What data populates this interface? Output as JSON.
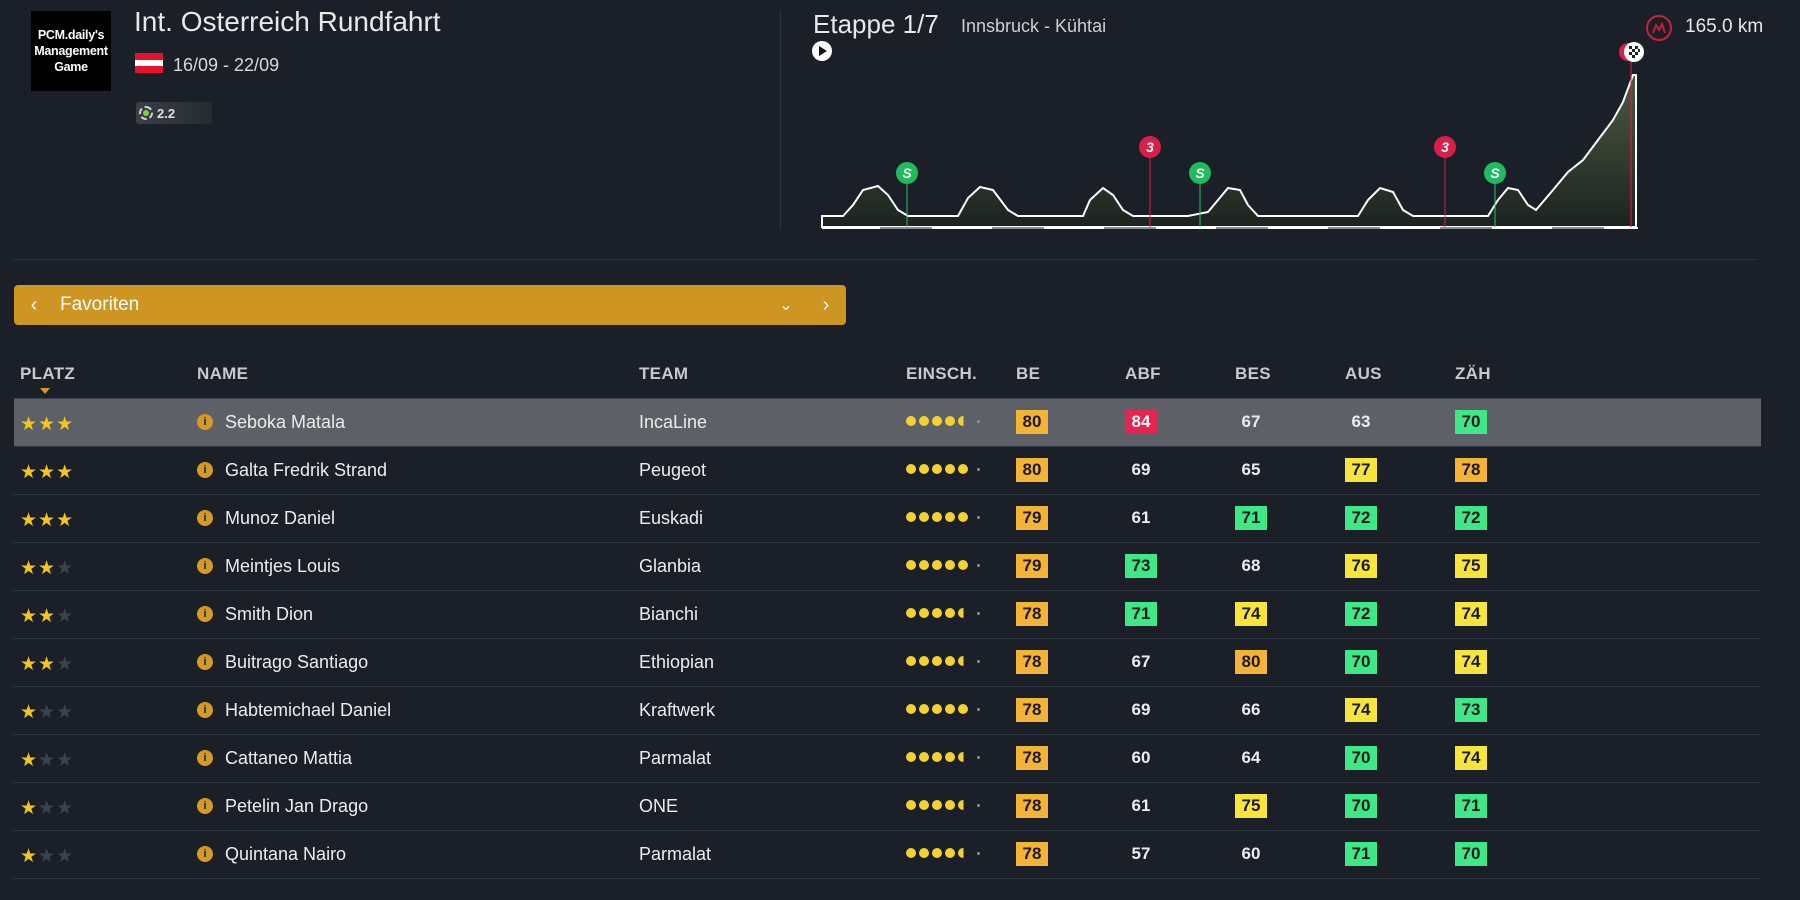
{
  "logo_text": "PCM.daily's Management Game",
  "race": {
    "title": "Int. Osterreich Rundfahrt",
    "dates": "16/09 - 22/09",
    "class": "2.2",
    "flag_colors": [
      "#e8112d",
      "#ffffff",
      "#e8112d"
    ]
  },
  "stage": {
    "title": "Etappe 1/7",
    "route": "Innsbruck - Kühtai",
    "distance": "165.0 km",
    "sprint_label": "S",
    "climb_label": "3"
  },
  "selector": {
    "label": "Favoriten",
    "prev_icon": "chevron-left",
    "next_icon": "chevron-right",
    "dropdown_icon": "chevron-down"
  },
  "columns": {
    "platz": "PLATZ",
    "name": "NAME",
    "team": "TEAM",
    "einsch": "EINSCH.",
    "be": "BE",
    "abf": "ABF",
    "bes": "BES",
    "aus": "AUS",
    "zah": "ZÄH"
  },
  "stat_colors": {
    "orange": "#f5b335",
    "yellow": "#f8e53c",
    "green": "#3ee886",
    "red": "#e8234e"
  },
  "riders": [
    {
      "stars": 3,
      "name": "Seboka Matala",
      "team": "IncaLine",
      "form": 4.5,
      "selected": true,
      "stats": [
        {
          "v": "80",
          "c": "orange"
        },
        {
          "v": "84",
          "c": "red"
        },
        {
          "v": "67",
          "c": ""
        },
        {
          "v": "63",
          "c": ""
        },
        {
          "v": "70",
          "c": "green"
        }
      ]
    },
    {
      "stars": 3,
      "name": "Galta Fredrik Strand",
      "team": "Peugeot",
      "form": 5,
      "stats": [
        {
          "v": "80",
          "c": "orange"
        },
        {
          "v": "69",
          "c": ""
        },
        {
          "v": "65",
          "c": ""
        },
        {
          "v": "77",
          "c": "yellow"
        },
        {
          "v": "78",
          "c": "orange"
        }
      ]
    },
    {
      "stars": 3,
      "name": "Munoz Daniel",
      "team": "Euskadi",
      "form": 5,
      "stats": [
        {
          "v": "79",
          "c": "orange"
        },
        {
          "v": "61",
          "c": ""
        },
        {
          "v": "71",
          "c": "green"
        },
        {
          "v": "72",
          "c": "green"
        },
        {
          "v": "72",
          "c": "green"
        }
      ]
    },
    {
      "stars": 2,
      "name": "Meintjes Louis",
      "team": "Glanbia",
      "form": 5,
      "stats": [
        {
          "v": "79",
          "c": "orange"
        },
        {
          "v": "73",
          "c": "green"
        },
        {
          "v": "68",
          "c": ""
        },
        {
          "v": "76",
          "c": "yellow"
        },
        {
          "v": "75",
          "c": "yellow"
        }
      ]
    },
    {
      "stars": 2,
      "name": "Smith Dion",
      "team": "Bianchi",
      "form": 4.5,
      "stats": [
        {
          "v": "78",
          "c": "orange"
        },
        {
          "v": "71",
          "c": "green"
        },
        {
          "v": "74",
          "c": "yellow"
        },
        {
          "v": "72",
          "c": "green"
        },
        {
          "v": "74",
          "c": "yellow"
        }
      ]
    },
    {
      "stars": 2,
      "name": "Buitrago Santiago",
      "team": "Ethiopian",
      "form": 4.5,
      "stats": [
        {
          "v": "78",
          "c": "orange"
        },
        {
          "v": "67",
          "c": ""
        },
        {
          "v": "80",
          "c": "orange"
        },
        {
          "v": "70",
          "c": "green"
        },
        {
          "v": "74",
          "c": "yellow"
        }
      ]
    },
    {
      "stars": 1,
      "name": "Habtemichael Daniel",
      "team": "Kraftwerk",
      "form": 5,
      "stats": [
        {
          "v": "78",
          "c": "orange"
        },
        {
          "v": "69",
          "c": ""
        },
        {
          "v": "66",
          "c": ""
        },
        {
          "v": "74",
          "c": "yellow"
        },
        {
          "v": "73",
          "c": "green"
        }
      ]
    },
    {
      "stars": 1,
      "name": "Cattaneo Mattia",
      "team": "Parmalat",
      "form": 4.5,
      "stats": [
        {
          "v": "78",
          "c": "orange"
        },
        {
          "v": "60",
          "c": ""
        },
        {
          "v": "64",
          "c": ""
        },
        {
          "v": "70",
          "c": "green"
        },
        {
          "v": "74",
          "c": "yellow"
        }
      ]
    },
    {
      "stars": 1,
      "name": "Petelin Jan Drago",
      "team": "ONE",
      "form": 4.5,
      "stats": [
        {
          "v": "78",
          "c": "orange"
        },
        {
          "v": "61",
          "c": ""
        },
        {
          "v": "75",
          "c": "yellow"
        },
        {
          "v": "70",
          "c": "green"
        },
        {
          "v": "71",
          "c": "green"
        }
      ]
    },
    {
      "stars": 1,
      "name": "Quintana Nairo",
      "team": "Parmalat",
      "form": 4.5,
      "stats": [
        {
          "v": "78",
          "c": "orange"
        },
        {
          "v": "57",
          "c": ""
        },
        {
          "v": "60",
          "c": ""
        },
        {
          "v": "71",
          "c": "green"
        },
        {
          "v": "70",
          "c": "green"
        }
      ]
    }
  ]
}
